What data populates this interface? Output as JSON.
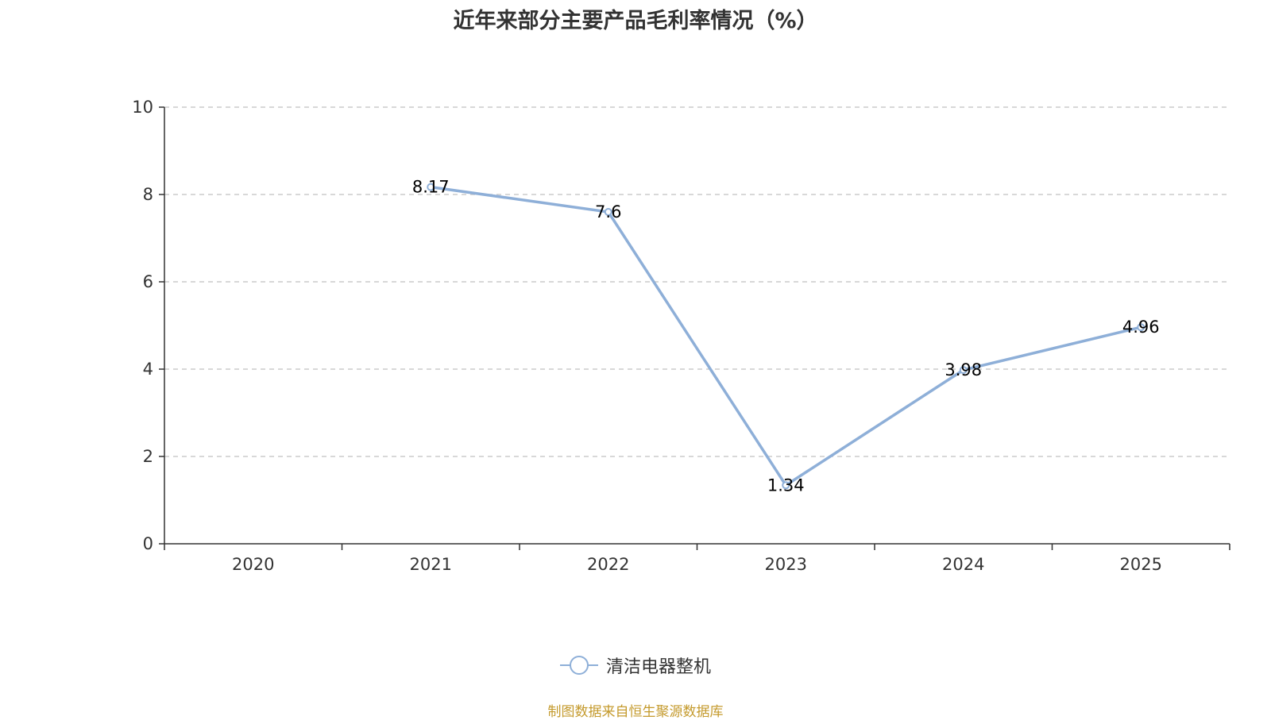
{
  "chart_data": {
    "type": "line",
    "title": "近年来部分主要产品毛利率情况（%）",
    "categories": [
      "2020",
      "2021",
      "2022",
      "2023",
      "2024",
      "2025"
    ],
    "series": [
      {
        "name": "清洁电器整机",
        "values": [
          null,
          8.17,
          7.6,
          1.34,
          3.98,
          4.96
        ],
        "labels": [
          "",
          "8.17",
          "7.6",
          "1.34",
          "3.98",
          "4.96"
        ],
        "color": "#8eafd8"
      }
    ],
    "ylim": [
      0,
      10
    ],
    "yticks": [
      "0",
      "2",
      "4",
      "6",
      "8",
      "10"
    ],
    "grid": "horizontal-dashed",
    "legend_position": "bottom-center"
  },
  "source": "制图数据来自恒生聚源数据库"
}
